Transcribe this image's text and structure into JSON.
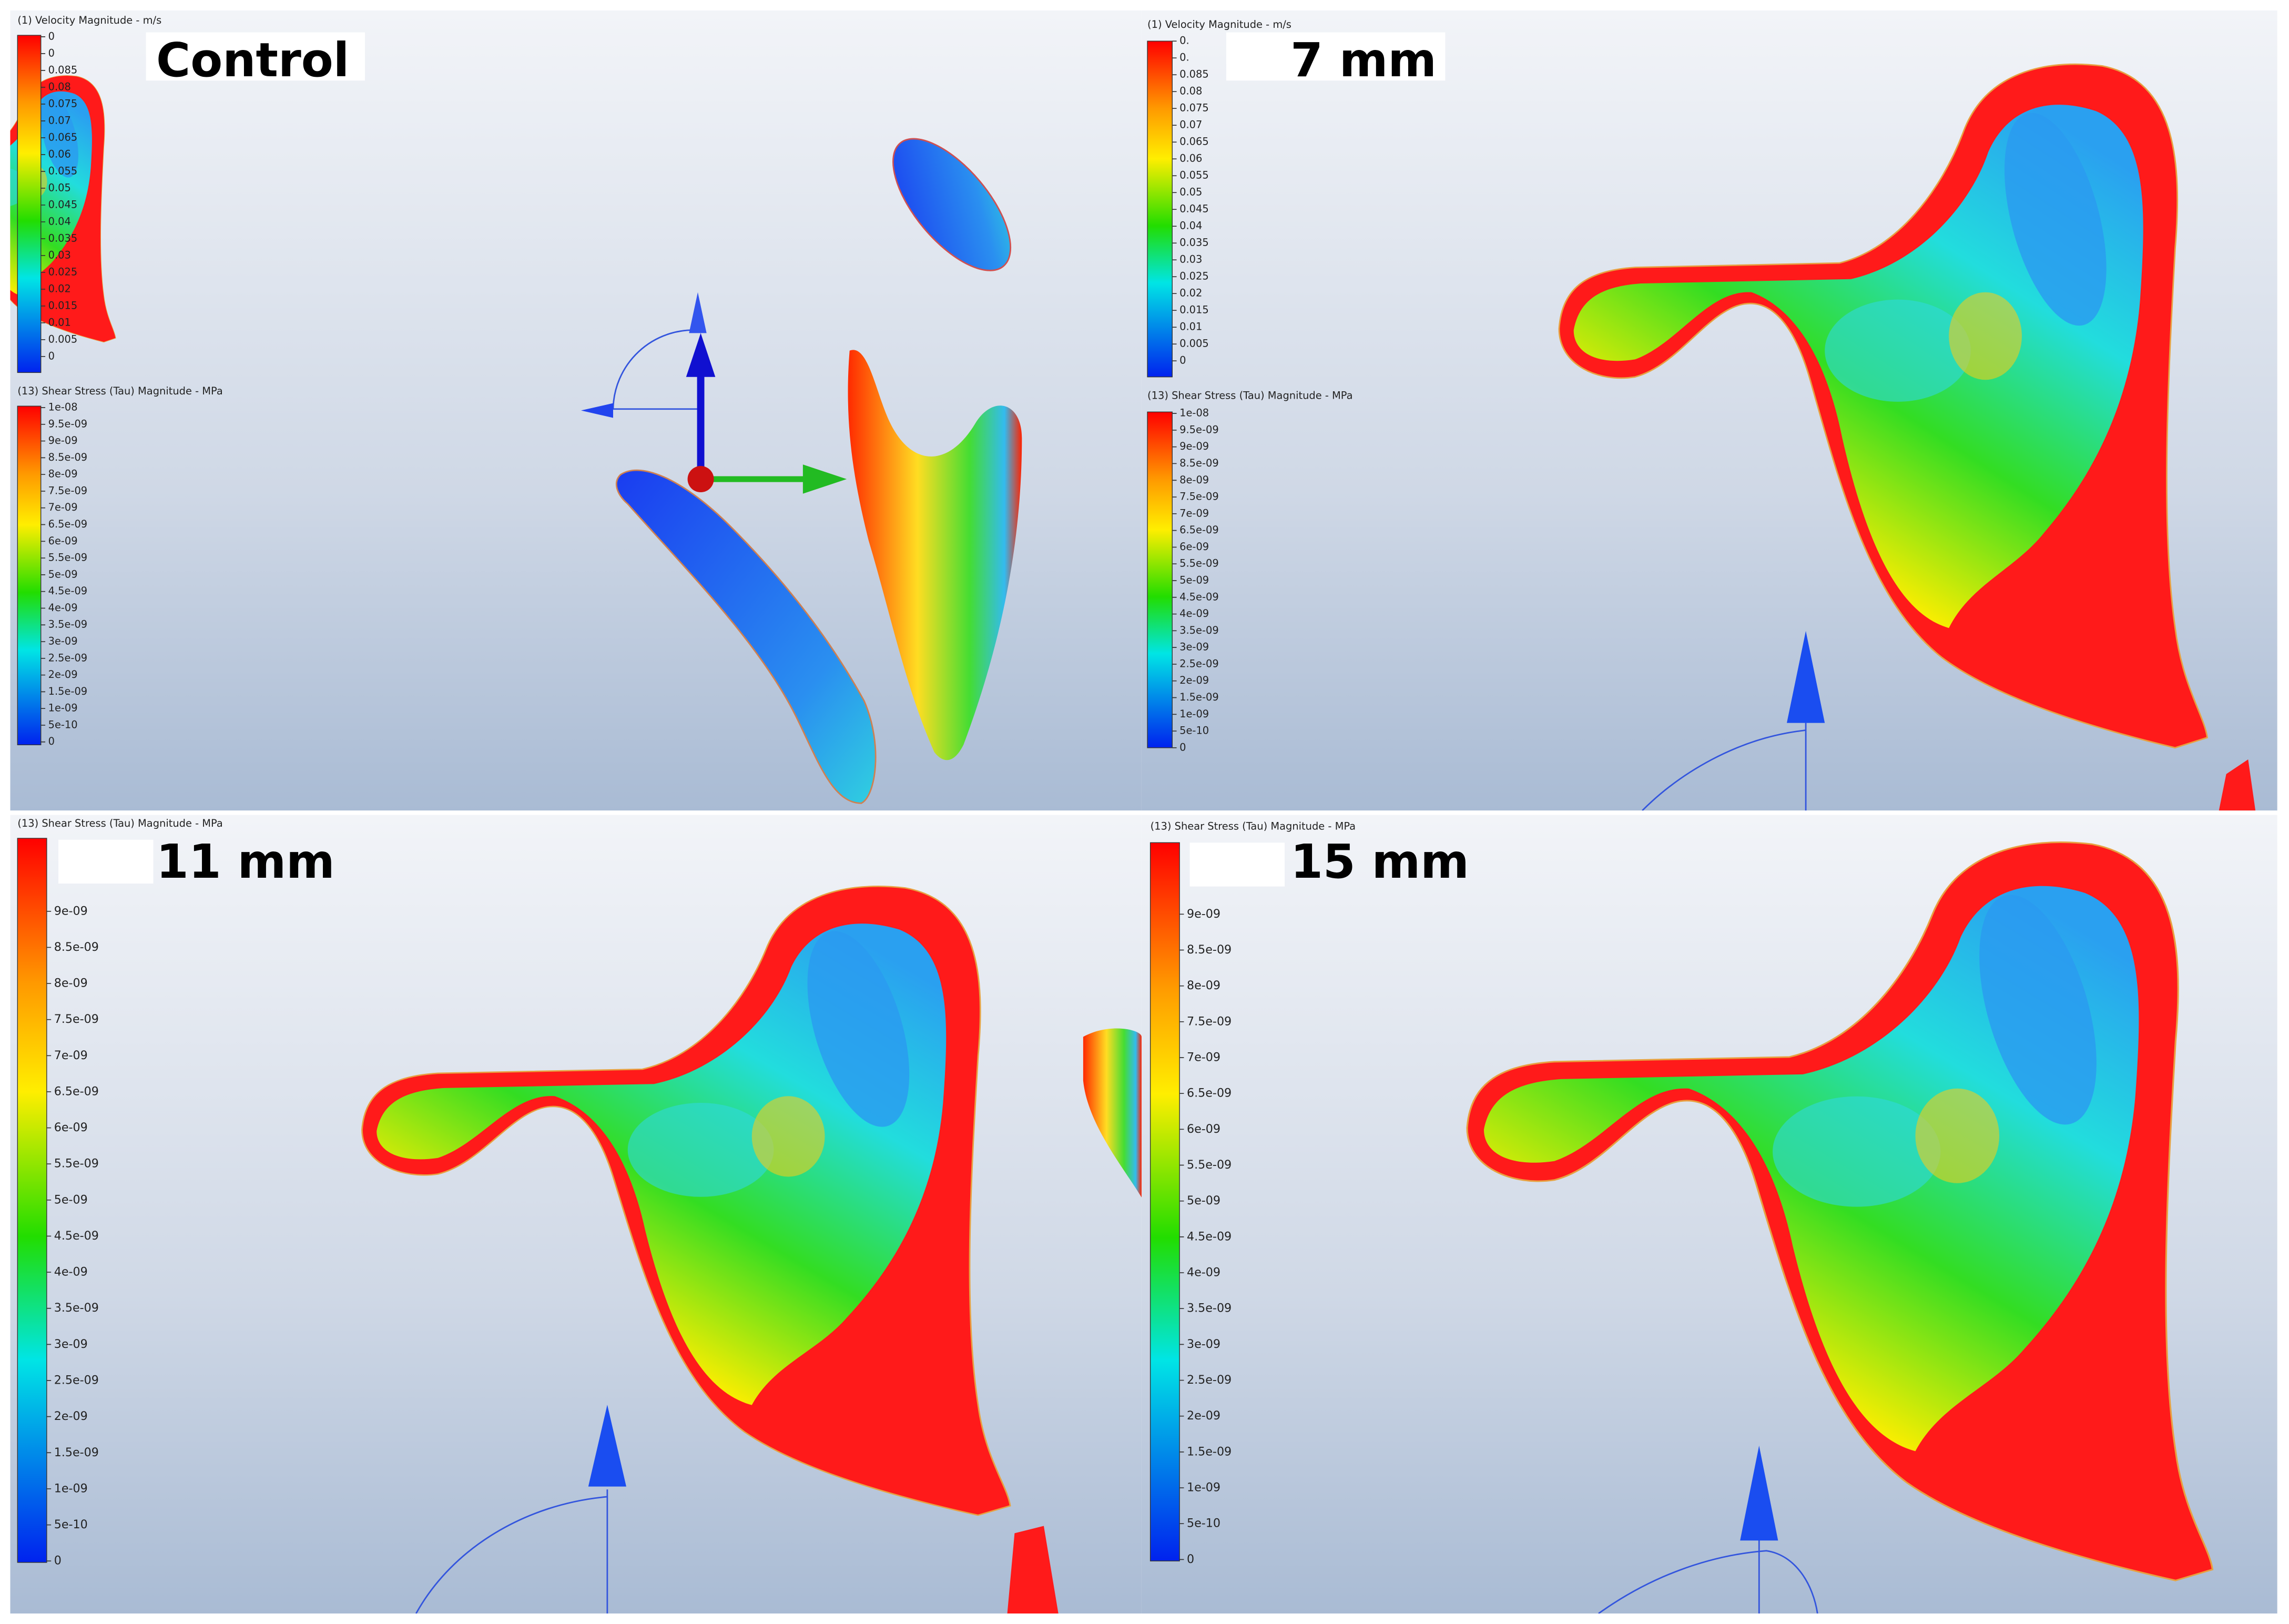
{
  "panels": [
    {
      "label": "Control",
      "legends": [
        {
          "title": "(1) Velocity Magnitude - m/s",
          "ticks": [
            "0",
            "0",
            "0.085",
            "0.08",
            "0.075",
            "0.07",
            "0.065",
            "0.06",
            "0.055",
            "0.05",
            "0.045",
            "0.04",
            "0.035",
            "0.03",
            "0.025",
            "0.02",
            "0.015",
            "0.01",
            "0.005",
            "0"
          ]
        },
        {
          "title": "(13) Shear Stress (Tau) Magnitude - MPa",
          "ticks": [
            "1e-08",
            "9.5e-09",
            "9e-09",
            "8.5e-09",
            "8e-09",
            "7.5e-09",
            "7e-09",
            "6.5e-09",
            "6e-09",
            "5.5e-09",
            "5e-09",
            "4.5e-09",
            "4e-09",
            "3.5e-09",
            "3e-09",
            "2.5e-09",
            "2e-09",
            "1.5e-09",
            "1e-09",
            "5e-10",
            "0"
          ]
        }
      ]
    },
    {
      "label": "7 mm",
      "legends": [
        {
          "title": "(1) Velocity Magnitude - m/s",
          "ticks": [
            "0.",
            "0.",
            "0.085",
            "0.08",
            "0.075",
            "0.07",
            "0.065",
            "0.06",
            "0.055",
            "0.05",
            "0.045",
            "0.04",
            "0.035",
            "0.03",
            "0.025",
            "0.02",
            "0.015",
            "0.01",
            "0.005",
            "0"
          ]
        },
        {
          "title": "(13) Shear Stress (Tau) Magnitude - MPa",
          "ticks": [
            "1e-08",
            "9.5e-09",
            "9e-09",
            "8.5e-09",
            "8e-09",
            "7.5e-09",
            "7e-09",
            "6.5e-09",
            "6e-09",
            "5.5e-09",
            "5e-09",
            "4.5e-09",
            "4e-09",
            "3.5e-09",
            "3e-09",
            "2.5e-09",
            "2e-09",
            "1.5e-09",
            "1e-09",
            "5e-10",
            "0"
          ]
        }
      ]
    },
    {
      "label": "11 mm",
      "legends": [
        {
          "title": "(13) Shear Stress (Tau) Magnitude - MPa",
          "ticks": [
            "9e-09",
            "8.5e-09",
            "8e-09",
            "7.5e-09",
            "7e-09",
            "6.5e-09",
            "6e-09",
            "5.5e-09",
            "5e-09",
            "4.5e-09",
            "4e-09",
            "3.5e-09",
            "3e-09",
            "2.5e-09",
            "2e-09",
            "1.5e-09",
            "1e-09",
            "5e-10",
            "0"
          ]
        }
      ]
    },
    {
      "label": "15 mm",
      "legends": [
        {
          "title": "(13) Shear Stress (Tau) Magnitude - MPa",
          "ticks": [
            "9e-09",
            "8.5e-09",
            "8e-09",
            "7.5e-09",
            "7e-09",
            "6.5e-09",
            "6e-09",
            "5.5e-09",
            "5e-09",
            "4.5e-09",
            "4e-09",
            "3.5e-09",
            "3e-09",
            "2.5e-09",
            "2e-09",
            "1.5e-09",
            "1e-09",
            "5e-10",
            "0"
          ]
        }
      ]
    }
  ]
}
